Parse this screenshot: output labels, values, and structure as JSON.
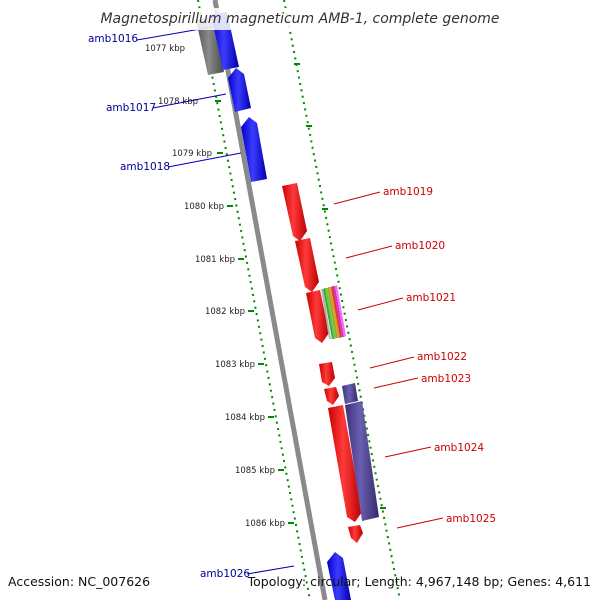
{
  "title": "Magnetospirillum magneticum AMB-1, complete genome",
  "accession": "Accession: NC_007626",
  "summary": "Topology: circular; Length: 4,967,148 bp; Genes: 4,611",
  "colors": {
    "forward_gene": "#ff0000",
    "reverse_gene": "#0000ff",
    "rna_gene": "#4b3f8f",
    "pseudo_gene": "#666666",
    "forward_label": "#cc0000",
    "reverse_label": "#000099",
    "tick": "#008800",
    "backbone": "#888888"
  },
  "kbp_ticks": [
    "1077 kbp",
    "1078 kbp",
    "1079 kbp",
    "1080 kbp",
    "1081 kbp",
    "1082 kbp",
    "1083 kbp",
    "1084 kbp",
    "1085 kbp",
    "1086 kbp"
  ],
  "reverse_genes": [
    {
      "label": "amb1016"
    },
    {
      "label": "amb1017"
    },
    {
      "label": "amb1018"
    },
    {
      "label": "amb1026"
    }
  ],
  "forward_genes": [
    {
      "label": "amb1019"
    },
    {
      "label": "amb1020"
    },
    {
      "label": "amb1021"
    },
    {
      "label": "amb1022"
    },
    {
      "label": "amb1023"
    },
    {
      "label": "amb1024"
    },
    {
      "label": "amb1025"
    }
  ]
}
